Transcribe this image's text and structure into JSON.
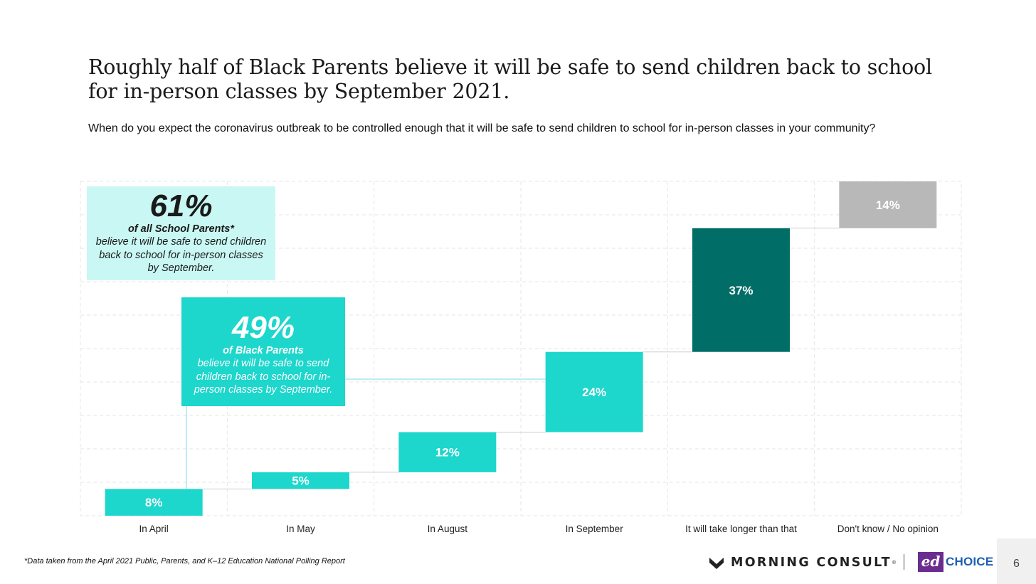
{
  "slide": {
    "title": "Roughly half of Black Parents believe it will be safe to send children back to school for in-person classes by September 2021.",
    "subtitle": "When do you expect the coronavirus outbreak to be controlled enough that it will be safe to send children to school for in-person classes in your community?",
    "footnote": "*Data taken from the April 2021 Public, Parents, and K–12 Education National Polling Report",
    "page_number": "6"
  },
  "callouts": {
    "all_parents": {
      "value": "61%",
      "who": "of all School Parents*",
      "desc": "believe it will be safe to send children back to school for in-person classes by September."
    },
    "black_parents": {
      "value": "49%",
      "who": "of Black Parents",
      "desc": "believe it will be safe to send children back to school for in-person classes by September."
    }
  },
  "branding": {
    "morning_consult": "MORNING CONSULT",
    "registered": "®",
    "ed": "ed",
    "choice": "CHOICE",
    "morning_consult_icon": "m-chevron-icon"
  },
  "colors": {
    "teal": "#1dd6cc",
    "dark_teal": "#006d66",
    "gray": "#b8b8b8",
    "light_teal": "#c9f7f3"
  },
  "chart_data": {
    "type": "waterfall",
    "categories": [
      "In April",
      "In May",
      "In August",
      "In September",
      "It will take longer than that",
      "Don't know / No opinion"
    ],
    "values": [
      8,
      5,
      12,
      24,
      37,
      14
    ],
    "labels": [
      "8%",
      "5%",
      "12%",
      "24%",
      "37%",
      "14%"
    ],
    "bar_colors": [
      "#1dd6cc",
      "#1dd6cc",
      "#1dd6cc",
      "#1dd6cc",
      "#006d66",
      "#b8b8b8"
    ],
    "ylim": [
      0,
      100
    ],
    "grid": true
  }
}
